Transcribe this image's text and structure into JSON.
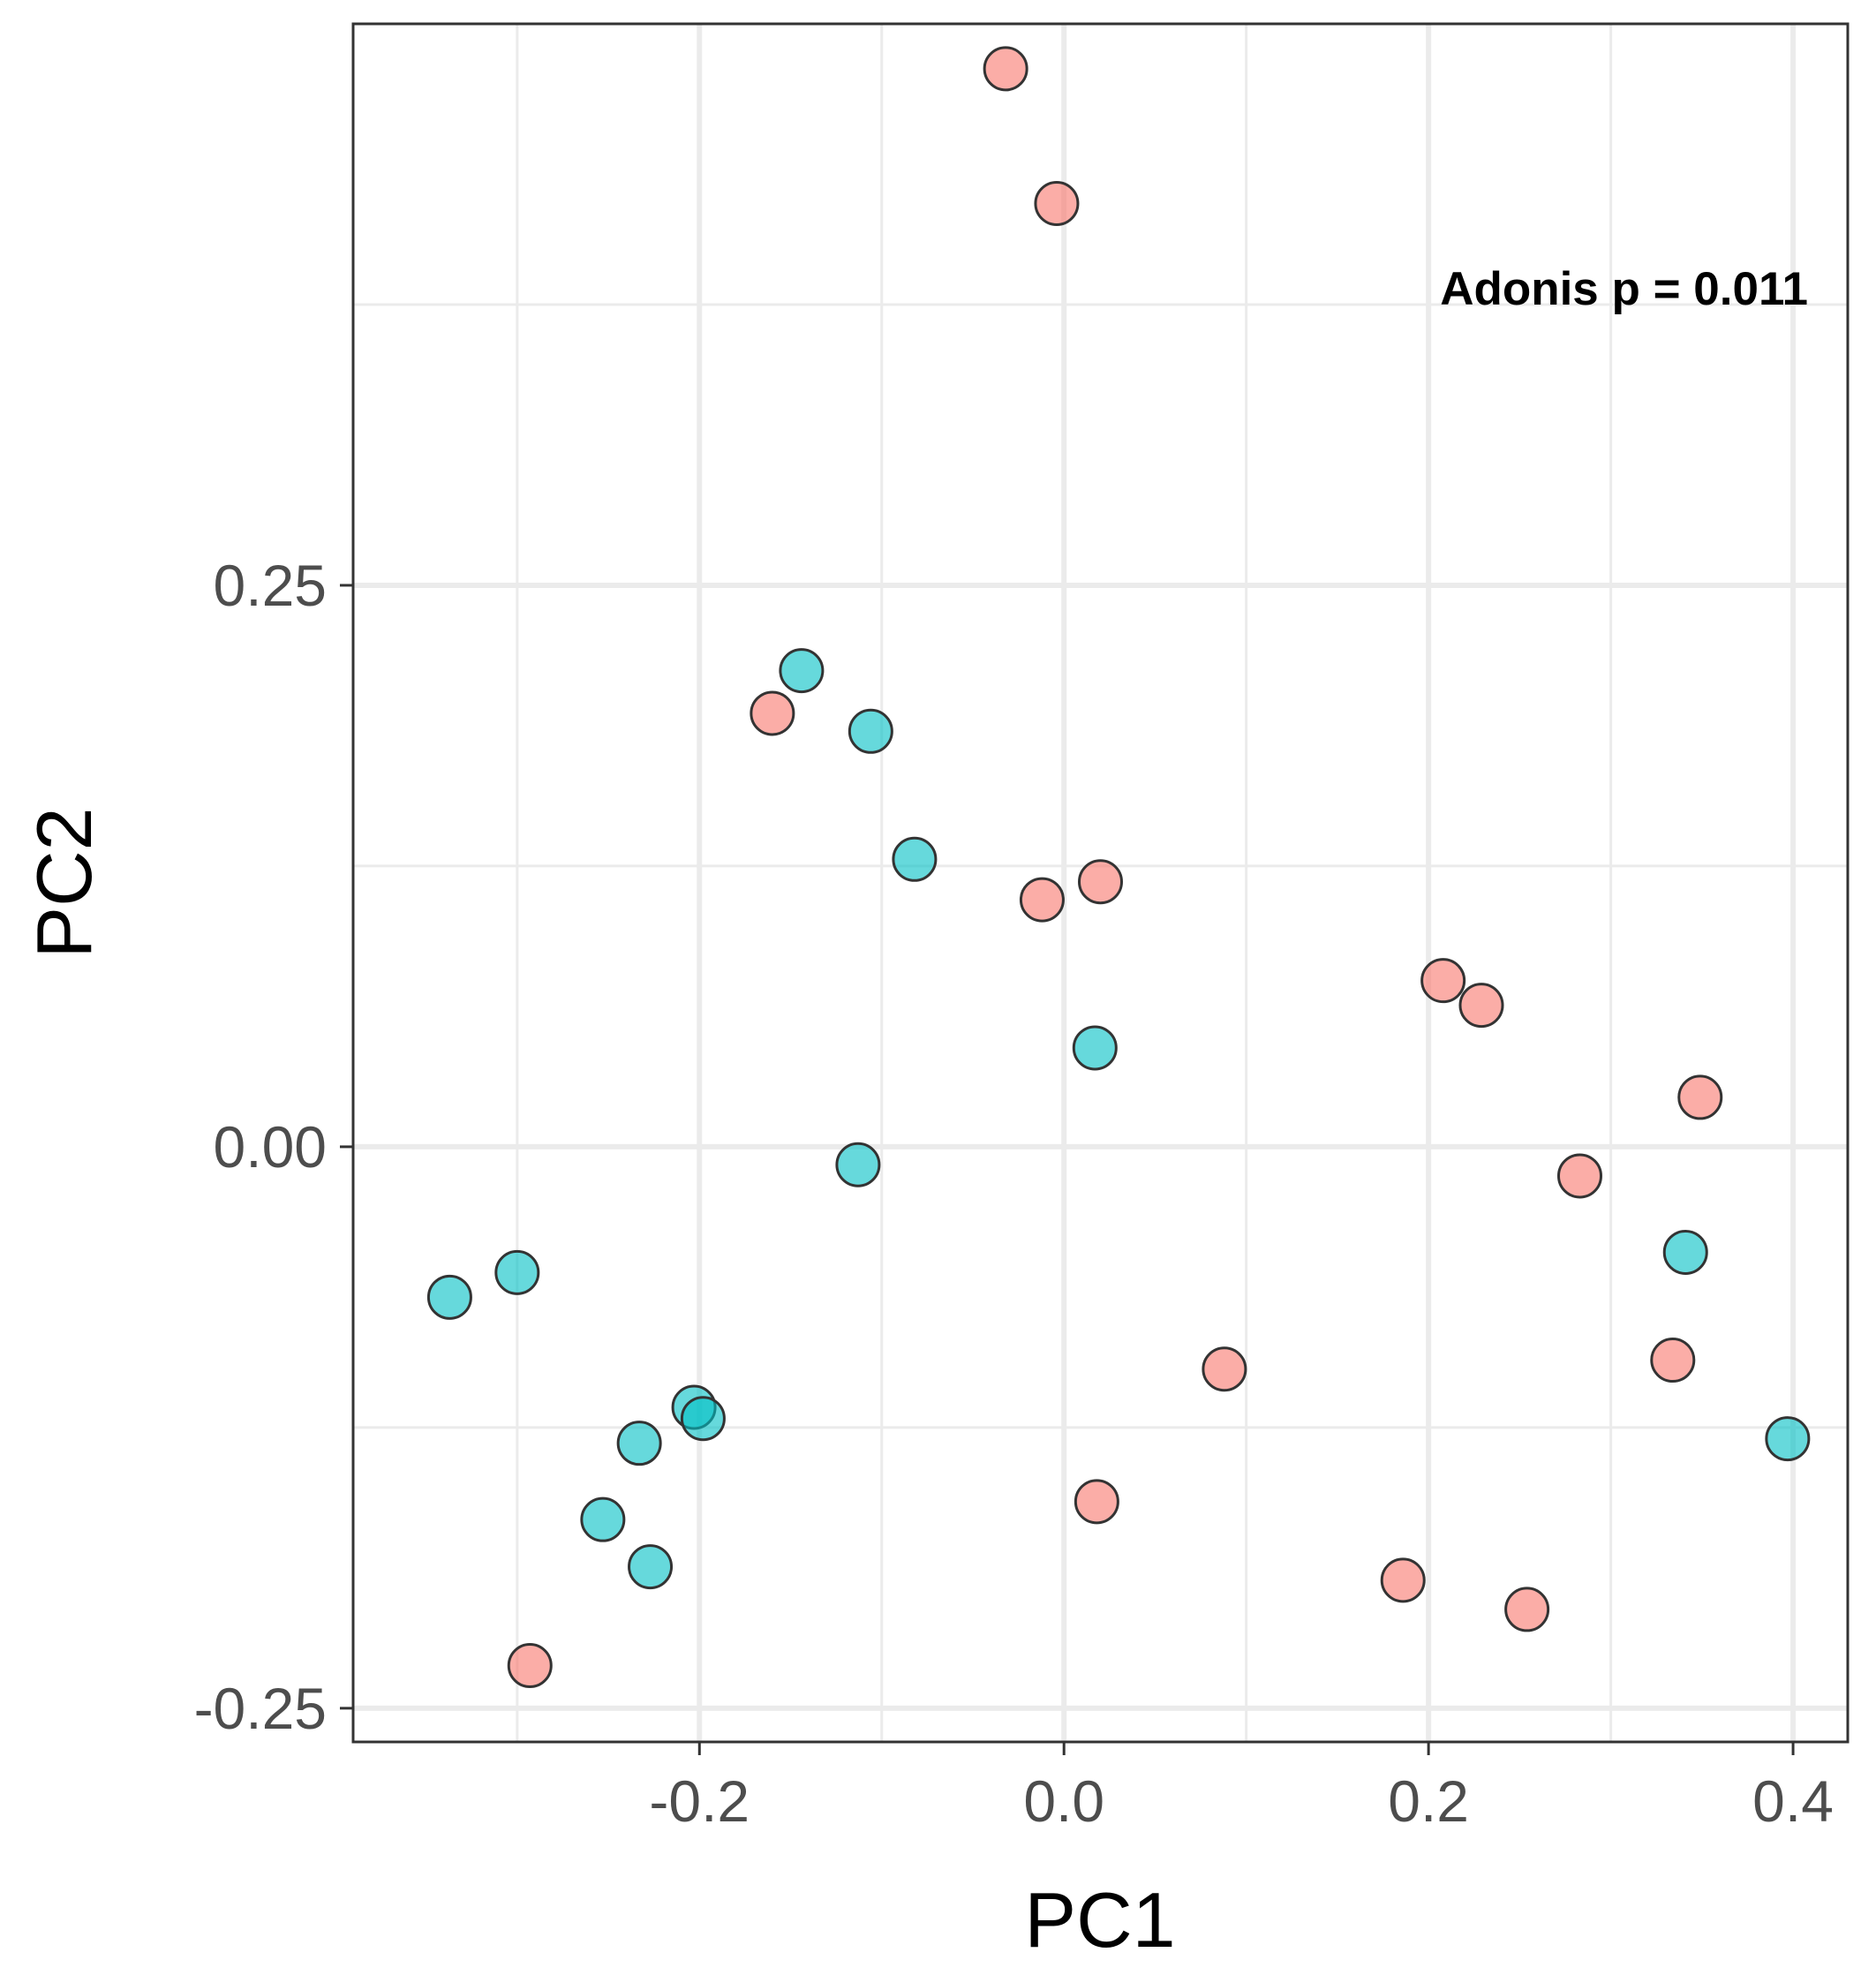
{
  "chart_data": {
    "type": "scatter",
    "xlabel": "PC1",
    "ylabel": "PC2",
    "xlim": [
      -0.39,
      0.43
    ],
    "ylim": [
      -0.265,
      0.5
    ],
    "x_ticks": [
      -0.2,
      0.0,
      0.2,
      0.4
    ],
    "x_tick_labels": [
      "-0.2",
      "0.0",
      "0.2",
      "0.4"
    ],
    "y_ticks": [
      -0.25,
      0.0,
      0.25
    ],
    "y_tick_labels": [
      "-0.25",
      "0.00",
      "0.25"
    ],
    "grid": true,
    "annotation": "Adonis p = 0.011",
    "series": [
      {
        "color": "#F8766D",
        "points": [
          {
            "x": -0.032,
            "y": 0.48
          },
          {
            "x": -0.004,
            "y": 0.42
          },
          {
            "x": -0.16,
            "y": 0.193
          },
          {
            "x": -0.012,
            "y": 0.11
          },
          {
            "x": 0.02,
            "y": 0.118
          },
          {
            "x": 0.208,
            "y": 0.074
          },
          {
            "x": 0.229,
            "y": 0.063
          },
          {
            "x": 0.349,
            "y": 0.022
          },
          {
            "x": 0.283,
            "y": -0.013
          },
          {
            "x": 0.334,
            "y": -0.095
          },
          {
            "x": 0.088,
            "y": -0.099
          },
          {
            "x": 0.018,
            "y": -0.158
          },
          {
            "x": 0.186,
            "y": -0.193
          },
          {
            "x": 0.254,
            "y": -0.206
          },
          {
            "x": -0.293,
            "y": -0.231
          }
        ]
      },
      {
        "color": "#00BFC4",
        "points": [
          {
            "x": -0.144,
            "y": 0.212
          },
          {
            "x": -0.106,
            "y": 0.185
          },
          {
            "x": -0.082,
            "y": 0.128
          },
          {
            "x": 0.017,
            "y": 0.044
          },
          {
            "x": -0.113,
            "y": -0.008
          },
          {
            "x": -0.3,
            "y": -0.056
          },
          {
            "x": -0.337,
            "y": -0.067
          },
          {
            "x": -0.203,
            "y": -0.116
          },
          {
            "x": -0.198,
            "y": -0.121
          },
          {
            "x": -0.233,
            "y": -0.132
          },
          {
            "x": -0.253,
            "y": -0.166
          },
          {
            "x": -0.227,
            "y": -0.187
          },
          {
            "x": 0.341,
            "y": -0.047
          },
          {
            "x": 0.397,
            "y": -0.13
          }
        ]
      }
    ]
  }
}
